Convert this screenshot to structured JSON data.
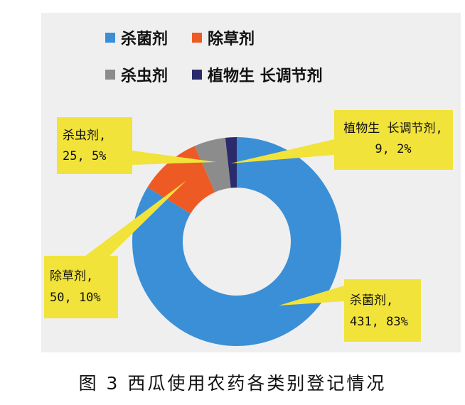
{
  "caption": "图 3 西瓜使用农药各类别登记情况",
  "chart_data": {
    "type": "pie",
    "donut": true,
    "slices": [
      {
        "name": "杀菌剂",
        "value": 431,
        "percent": "83%",
        "color": "#3b8fd6"
      },
      {
        "name": "除草剂",
        "value": 50,
        "percent": "10%",
        "color": "#ee5a24"
      },
      {
        "name": "杀虫剂",
        "value": 25,
        "percent": "5%",
        "color": "#8c8c8c"
      },
      {
        "name": "植物生 长调节剂",
        "value": 9,
        "percent": "2%",
        "color": "#2b2a6b"
      }
    ],
    "callouts": [
      {
        "line1": "植物生 长调节剂,",
        "line2": "9, 2%"
      },
      {
        "line1": "杀虫剂,",
        "line2": "25, 5%"
      },
      {
        "line1": "除草剂,",
        "line2": "50, 10%"
      },
      {
        "line1": "杀菌剂,",
        "line2": "431, 83%"
      }
    ],
    "callout_color": "#f1e33a"
  }
}
